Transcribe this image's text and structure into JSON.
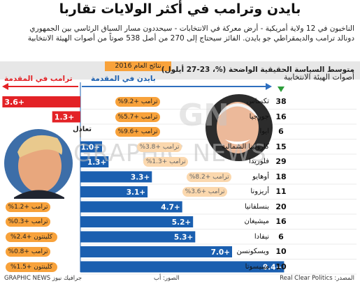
{
  "title": "بايدن وترامب في أكثر الولايات تقاربا",
  "intro_line1": "الناخبون في 12 ولاية أمريكية - أرض معركة في الانتخابات - سيحددون مسار السباق الرئاسي بين الجمهوري",
  "intro_line2": "دونالد ترامب والديمقراطي جو بايدن. الفائز سيحتاج إلى 270 من أصل 538 صوتاً من أصوات الهيئة الانتخابية",
  "year_tag": "نتائج العام 2016",
  "subtitle": "متوسط السياسة الحقيقية الواضحة (%، 23-27 أيلول)",
  "ev_header": "أصوات الهيئة الانتخابية",
  "trump_lead_label": "ترامب في المقدمة",
  "biden_lead_label": "بايدن في المقدمة",
  "tie_label": "تعادل",
  "footer_left": "GRAPHIC NEWS جرافيك نيوز",
  "footer_center": "الصور: أب",
  "footer_right": "المصدر: Real Clear Politics",
  "watermark_a": "GRAPHIC NEWS",
  "watermark_b": "GN",
  "colors": {
    "trump": "#e32226",
    "biden": "#1a5fb0",
    "pill": "#f8a23b",
    "arrow_biden": "#2e6fbf",
    "band": "#e7e7e7"
  },
  "icons": {
    "down_arrow": "triangle-down-icon"
  },
  "chart_data": {
    "type": "bar",
    "title": "متوسط السياسة الحقيقية الواضحة (%، 23-27 أيلول)",
    "categories": [
      "تكساس",
      "جورجيا",
      "ايوا",
      "كارولينا الشمالية",
      "فلوريدا",
      "أوهايو",
      "أريزونا",
      "بنسلفانيا",
      "ميشيغان",
      "نيفادا",
      "ويسكونسن",
      "مينيسوتا"
    ],
    "electoral_votes": [
      38,
      16,
      6,
      15,
      29,
      18,
      11,
      20,
      16,
      6,
      10,
      10
    ],
    "margins": [
      {
        "leader": "trump",
        "value": 3.6,
        "label": "3.6+"
      },
      {
        "leader": "trump",
        "value": 1.3,
        "label": "1.3+"
      },
      {
        "leader": "tie",
        "value": 0,
        "label": ""
      },
      {
        "leader": "biden",
        "value": 1.0,
        "label": "1.0+"
      },
      {
        "leader": "biden",
        "value": 1.3,
        "label": "1.3+"
      },
      {
        "leader": "biden",
        "value": 3.3,
        "label": "3.3+"
      },
      {
        "leader": "biden",
        "value": 3.1,
        "label": "3.1+"
      },
      {
        "leader": "biden",
        "value": 4.7,
        "label": "4.7+"
      },
      {
        "leader": "biden",
        "value": 5.2,
        "label": "5.2+"
      },
      {
        "leader": "biden",
        "value": 5.3,
        "label": "5.3+"
      },
      {
        "leader": "biden",
        "value": 7.0,
        "label": "7.0+"
      },
      {
        "leader": "biden",
        "value": 9.4,
        "label": "9.4+"
      }
    ],
    "results_2016": [
      {
        "text": "ترامب +9.2%",
        "faded": false
      },
      {
        "text": "ترامب +5.7%",
        "faded": false
      },
      {
        "text": "ترامب +9.6%",
        "faded": false
      },
      {
        "text": "ترامب +3.8%",
        "faded": true
      },
      {
        "text": "ترامب +1.3%",
        "faded": true
      },
      {
        "text": "ترامب +8.2%",
        "faded": true
      },
      {
        "text": "ترامب +3.6%",
        "faded": true
      },
      {
        "text": "ترامب +1.2%",
        "faded": false
      },
      {
        "text": "ترامب +0.3%",
        "faded": false
      },
      {
        "text": "كلينتون +2.4%",
        "faded": false
      },
      {
        "text": "ترامب +0.8%",
        "faded": false
      },
      {
        "text": "كلينتون +1.5%",
        "faded": false
      }
    ],
    "series": [
      {
        "name": "ترامب في المقدمة",
        "color": "#e32226"
      },
      {
        "name": "بايدن في المقدمة",
        "color": "#1a5fb0"
      }
    ],
    "xlabel": "",
    "ylabel": ""
  }
}
